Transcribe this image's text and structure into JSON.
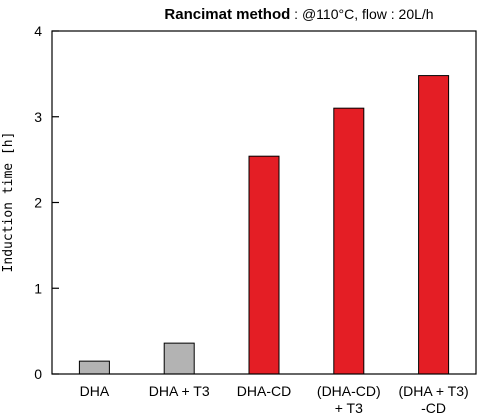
{
  "chart_data": {
    "type": "bar",
    "title_bold": "Rancimat method",
    "title_rest": " : @110°C, flow : 20L/h",
    "xlabel": "",
    "ylabel": "Induction time [h]",
    "ylim": [
      0,
      4
    ],
    "yticks": [
      "0",
      "1",
      "2",
      "3",
      "4"
    ],
    "categories": [
      [
        "DHA"
      ],
      [
        "DHA + T3"
      ],
      [
        "DHA-CD"
      ],
      [
        "(DHA-CD)",
        "+ T3"
      ],
      [
        "(DHA + T3)",
        "-CD"
      ]
    ],
    "values": [
      0.15,
      0.36,
      2.54,
      3.1,
      3.48
    ],
    "colors": [
      "#b3b3b3",
      "#b3b3b3",
      "#e41e25",
      "#e41e25",
      "#e41e25"
    ],
    "grid": false,
    "legend": "none"
  }
}
